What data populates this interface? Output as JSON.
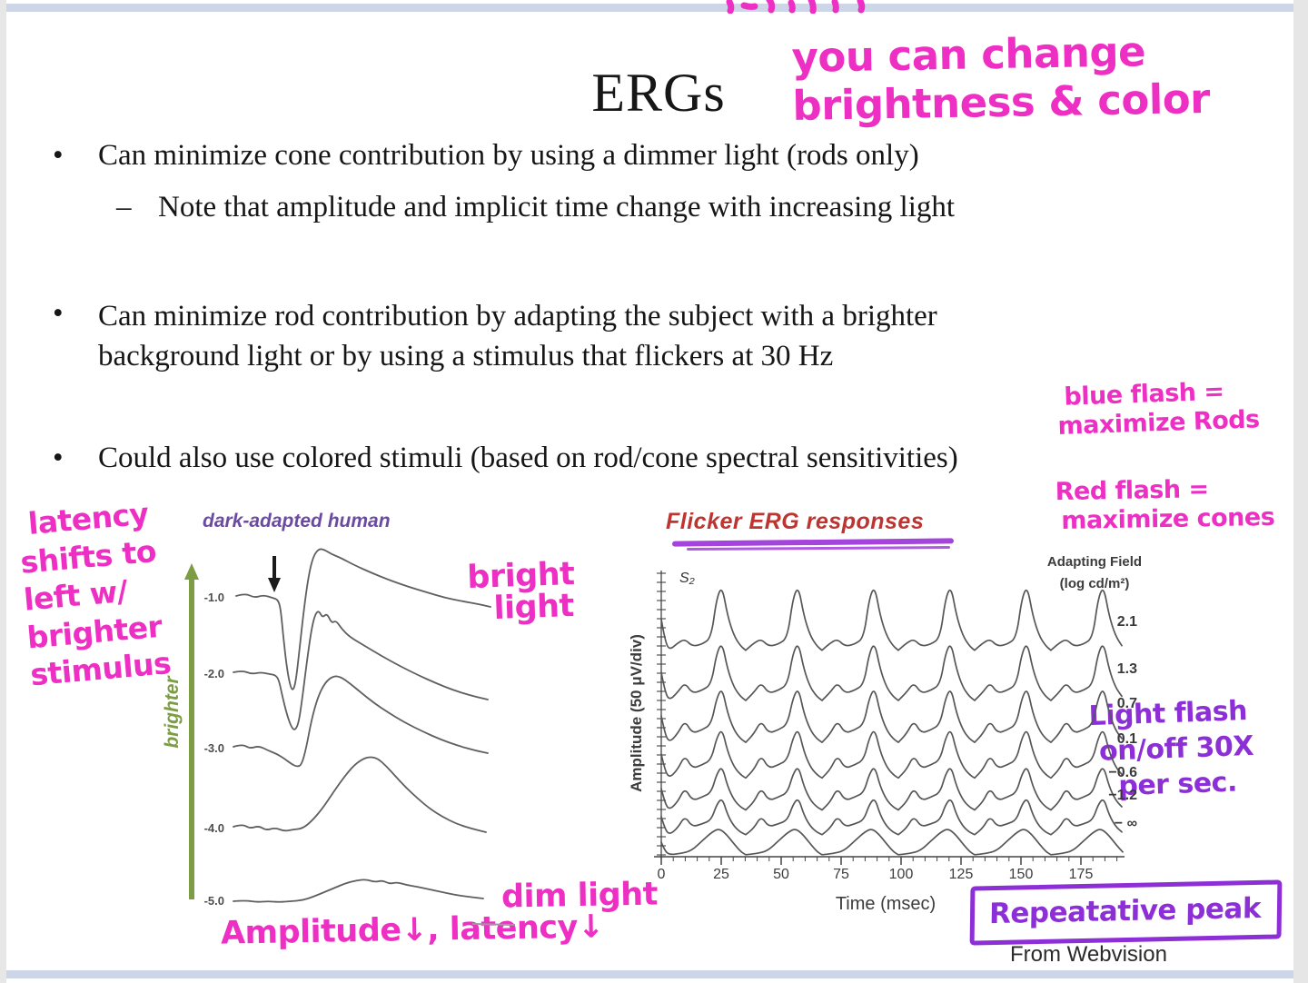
{
  "slide": {
    "title": "ERGs",
    "bullet_glyph": "•",
    "bullet1": "Can minimize cone contribution by using a dimmer light (rods only)",
    "sub_bullet1_dash": "–",
    "sub_bullet1": "Note that amplitude and implicit time change with increasing light",
    "bullet2_line1": "Can minimize rod contribution by adapting the subject with a brighter",
    "bullet2_line2": "background light or by using a stimulus that flickers at 30 Hz",
    "bullet3": "Could also use colored stimuli (based on rod/cone spectral sensitivities)",
    "credit": "From Webvision"
  },
  "handwriting": {
    "top_note_line1": "you can change",
    "top_note_line2": "brightness & color",
    "blue_flash_line1": "blue flash =",
    "blue_flash_line2": "maximize Rods",
    "red_flash_line1": "Red flash =",
    "red_flash_line2": "maximize cones",
    "latency_note": [
      "latency",
      "shifts to",
      "left w/",
      "brighter",
      "stimulus"
    ],
    "bright_light_line1": "bright",
    "bright_light_line2": "light",
    "dim_light": "dim light",
    "amplitude_note": "Amplitude↓, latency↓",
    "flash_note": [
      "Light flash",
      "on/off 30X",
      "per sec."
    ],
    "repetitive_peak": "Repeatative peak"
  },
  "dark_adapted_chart": {
    "title": "dark-adapted human",
    "y_arrow_label": "brighter",
    "trace_labels": [
      "-1.0",
      "-2.0",
      "-3.0",
      "-4.0",
      "-5.0"
    ]
  },
  "flicker_chart": {
    "title": "Flicker ERG responses",
    "ylabel": "Amplitude (50 μV/div)",
    "xlabel": "Time (msec)",
    "corner_label": "S₂",
    "x_ticks": [
      "0",
      "25",
      "50",
      "75",
      "100",
      "125",
      "150",
      "175"
    ],
    "legend_title1": "Adapting Field",
    "legend_title2": "(log cd/m²)",
    "levels": [
      "2.1",
      "1.3",
      "0.7",
      "0.1",
      "−0.6",
      "−1.2",
      "− ∞"
    ]
  },
  "colors": {
    "pink_marker": "#ee2fc4",
    "purple_marker": "#8d2fd6",
    "red_title": "#bd3431",
    "purple_fig_title": "#6b4aa2",
    "green_arrow": "#7d9d45",
    "band": "#ccd6e6",
    "trace": "#5c5c5c"
  },
  "chart_data": [
    {
      "type": "line",
      "title": "dark-adapted human",
      "ylabel": "brighter (arrow up); flash intensity in log units",
      "categories_note": "five single-flash ERG traces stacked by flash intensity; arrow marks stimulus onset",
      "series": [
        {
          "name": "-1.0",
          "a_wave_rel": -1.0,
          "b_wave_rel": 1.0,
          "b_wave_latency_rel": 0.3
        },
        {
          "name": "-2.0",
          "a_wave_rel": -0.6,
          "b_wave_rel": 0.75,
          "b_wave_latency_rel": 0.38
        },
        {
          "name": "-3.0",
          "a_wave_rel": -0.2,
          "b_wave_rel": 0.6,
          "b_wave_latency_rel": 0.5
        },
        {
          "name": "-4.0",
          "a_wave_rel": 0.0,
          "b_wave_rel": 0.45,
          "b_wave_latency_rel": 0.65
        },
        {
          "name": "-5.0",
          "a_wave_rel": 0.0,
          "b_wave_rel": 0.12,
          "b_wave_latency_rel": 0.8
        }
      ],
      "annotations": [
        "bright light (top trace)",
        "dim light (bottom trace)",
        "Amplitude↓, latency↓ with dimmer flashes",
        "latency shifts to left w/ brighter stimulus"
      ]
    },
    {
      "type": "line",
      "title": "Flicker ERG responses",
      "xlabel": "Time (msec)",
      "ylabel": "Amplitude (50 μV/div)",
      "xlim": [
        0,
        190
      ],
      "x_ticks": [
        0,
        25,
        50,
        75,
        100,
        125,
        150,
        175
      ],
      "flicker_rate_hz": 30,
      "peak_times_ms": [
        25,
        57,
        89,
        121,
        153,
        184
      ],
      "series": [
        {
          "name": "2.1",
          "peak_to_peak_rel": 1.0,
          "shape": "sharp spikes"
        },
        {
          "name": "1.3",
          "peak_to_peak_rel": 0.9,
          "shape": "sharp spikes"
        },
        {
          "name": "0.7",
          "peak_to_peak_rel": 0.85,
          "shape": "spike with shoulder"
        },
        {
          "name": "0.1",
          "peak_to_peak_rel": 0.77,
          "shape": "double-peaked"
        },
        {
          "name": "-0.6",
          "peak_to_peak_rel": 0.68,
          "shape": "double-peaked"
        },
        {
          "name": "-1.2",
          "peak_to_peak_rel": 0.58,
          "shape": "rounded"
        },
        {
          "name": "-∞",
          "peak_to_peak_rel": 0.41,
          "shape": "smooth rounded humps"
        }
      ],
      "legend_title": "Adapting Field (log cd/m²)",
      "legend_position": "right"
    }
  ]
}
